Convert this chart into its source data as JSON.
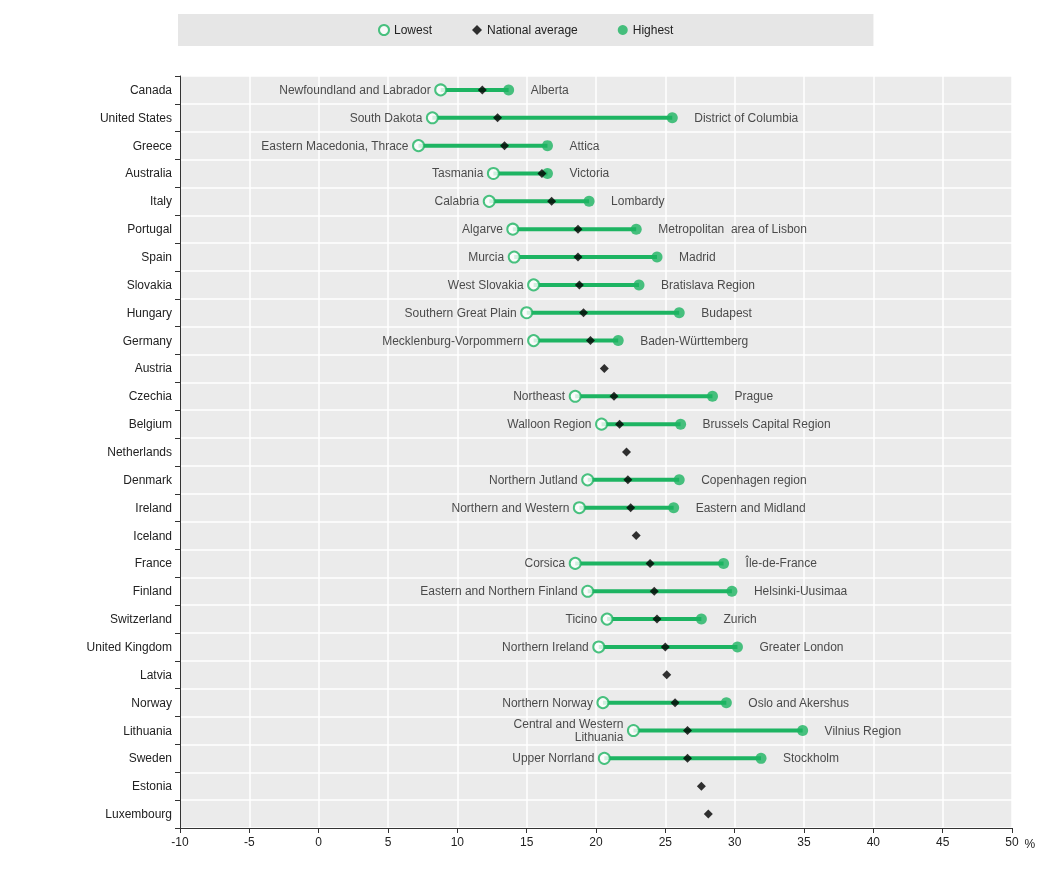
{
  "chart_data": {
    "type": "scatter",
    "orientation": "horizontal",
    "xlabel": "%",
    "categories": [
      "Canada",
      "United States",
      "Greece",
      "Australia",
      "Italy",
      "Portugal",
      "Spain",
      "Slovakia",
      "Hungary",
      "Germany",
      "Austria",
      "Czechia",
      "Belgium",
      "Netherlands",
      "Denmark",
      "Ireland",
      "Iceland",
      "France",
      "Finland",
      "Switzerland",
      "United Kingdom",
      "Latvia",
      "Norway",
      "Lithuania",
      "Sweden",
      "Estonia",
      "Luxembourg"
    ],
    "series": [
      {
        "name": "Lowest",
        "color": "#1db462",
        "marker": "circle",
        "values": [
          8.8,
          8.2,
          7.2,
          12.6,
          12.3,
          14.0,
          14.1,
          15.5,
          15.0,
          15.5,
          null,
          18.5,
          20.4,
          null,
          19.4,
          18.8,
          null,
          18.5,
          19.4,
          20.8,
          20.2,
          null,
          20.5,
          22.7,
          20.6,
          null,
          null
        ]
      },
      {
        "name": "National average",
        "color": "#000000",
        "marker": "diamond",
        "values": [
          11.8,
          12.9,
          13.4,
          16.1,
          16.8,
          18.7,
          18.7,
          18.8,
          19.1,
          19.6,
          20.6,
          21.3,
          21.7,
          22.2,
          22.3,
          22.5,
          22.9,
          23.9,
          24.2,
          24.4,
          25.0,
          25.1,
          25.7,
          26.6,
          26.6,
          27.6,
          28.1
        ]
      },
      {
        "name": "Highest",
        "color": "#1db462",
        "marker": "circle",
        "values": [
          13.7,
          25.5,
          16.5,
          16.5,
          19.5,
          22.9,
          24.4,
          23.1,
          26.0,
          21.6,
          null,
          28.4,
          26.1,
          null,
          26.0,
          25.6,
          null,
          29.2,
          29.8,
          27.6,
          30.2,
          null,
          29.4,
          34.9,
          31.9,
          null,
          null
        ]
      }
    ],
    "xlim": [
      -10,
      50
    ],
    "xticks": [
      -10,
      -5,
      0,
      5,
      10,
      15,
      20,
      25,
      30,
      35,
      40,
      45,
      50
    ],
    "grid": true,
    "legend": "top",
    "annotations": [
      {
        "text": "Newfoundland and Labrador",
        "x": 8.8,
        "y": "Canada"
      },
      {
        "text": "Alberta",
        "x": 13.7,
        "y": "Canada"
      },
      {
        "text": "South Dakota",
        "x": 8.2,
        "y": "United States"
      },
      {
        "text": "District of Columbia",
        "x": 25.5,
        "y": "United States"
      },
      {
        "text": "Eastern Macedonia, Thrace",
        "x": 7.2,
        "y": "Greece"
      },
      {
        "text": "Attica",
        "x": 16.5,
        "y": "Greece"
      },
      {
        "text": "Tasmania",
        "x": 12.6,
        "y": "Australia"
      },
      {
        "text": "Victoria",
        "x": 16.5,
        "y": "Australia"
      },
      {
        "text": "Calabria",
        "x": 12.3,
        "y": "Italy"
      },
      {
        "text": "Lombardy",
        "x": 19.5,
        "y": "Italy"
      },
      {
        "text": "Algarve",
        "x": 14.0,
        "y": "Portugal"
      },
      {
        "text": "Metropolitan  area of Lisbon",
        "x": 22.9,
        "y": "Portugal"
      },
      {
        "text": "Murcia",
        "x": 14.1,
        "y": "Spain"
      },
      {
        "text": "Madrid",
        "x": 24.4,
        "y": "Spain"
      },
      {
        "text": "West Slovakia",
        "x": 15.5,
        "y": "Slovakia"
      },
      {
        "text": "Bratislava Region",
        "x": 23.1,
        "y": "Slovakia"
      },
      {
        "text": "Southern Great Plain",
        "x": 15.0,
        "y": "Hungary"
      },
      {
        "text": "Budapest",
        "x": 26.0,
        "y": "Hungary"
      },
      {
        "text": "Mecklenburg-Vorpommern",
        "x": 15.5,
        "y": "Germany"
      },
      {
        "text": "Baden-Württemberg",
        "x": 21.6,
        "y": "Germany"
      },
      {
        "text": "Northeast",
        "x": 18.5,
        "y": "Czechia"
      },
      {
        "text": "Prague",
        "x": 28.4,
        "y": "Czechia"
      },
      {
        "text": "Walloon Region",
        "x": 20.4,
        "y": "Belgium"
      },
      {
        "text": "Brussels Capital Region",
        "x": 26.1,
        "y": "Belgium"
      },
      {
        "text": "Northern Jutland",
        "x": 19.4,
        "y": "Denmark"
      },
      {
        "text": "Copenhagen region",
        "x": 26.0,
        "y": "Denmark"
      },
      {
        "text": "Northern and Western",
        "x": 18.8,
        "y": "Ireland"
      },
      {
        "text": "Eastern and Midland",
        "x": 25.6,
        "y": "Ireland"
      },
      {
        "text": "Corsica",
        "x": 18.5,
        "y": "France"
      },
      {
        "text": "Île-de-France",
        "x": 29.2,
        "y": "France"
      },
      {
        "text": "Eastern and Northern Finland",
        "x": 19.4,
        "y": "Finland"
      },
      {
        "text": "Helsinki-Uusimaa",
        "x": 29.8,
        "y": "Finland"
      },
      {
        "text": "Ticino",
        "x": 20.8,
        "y": "Switzerland"
      },
      {
        "text": "Zurich",
        "x": 27.6,
        "y": "Switzerland"
      },
      {
        "text": "Northern Ireland",
        "x": 20.2,
        "y": "United Kingdom"
      },
      {
        "text": "Greater London",
        "x": 30.2,
        "y": "United Kingdom"
      },
      {
        "text": "Northern Norway",
        "x": 20.5,
        "y": "Norway"
      },
      {
        "text": "Oslo and Akershus",
        "x": 29.4,
        "y": "Norway"
      },
      {
        "text": "Central and Western\nLithuania",
        "x": 22.7,
        "y": "Lithuania"
      },
      {
        "text": "Vilnius Region",
        "x": 34.9,
        "y": "Lithuania"
      },
      {
        "text": "Upper Norrland",
        "x": 20.6,
        "y": "Sweden"
      },
      {
        "text": "Stockholm",
        "x": 31.9,
        "y": "Sweden"
      }
    ]
  }
}
